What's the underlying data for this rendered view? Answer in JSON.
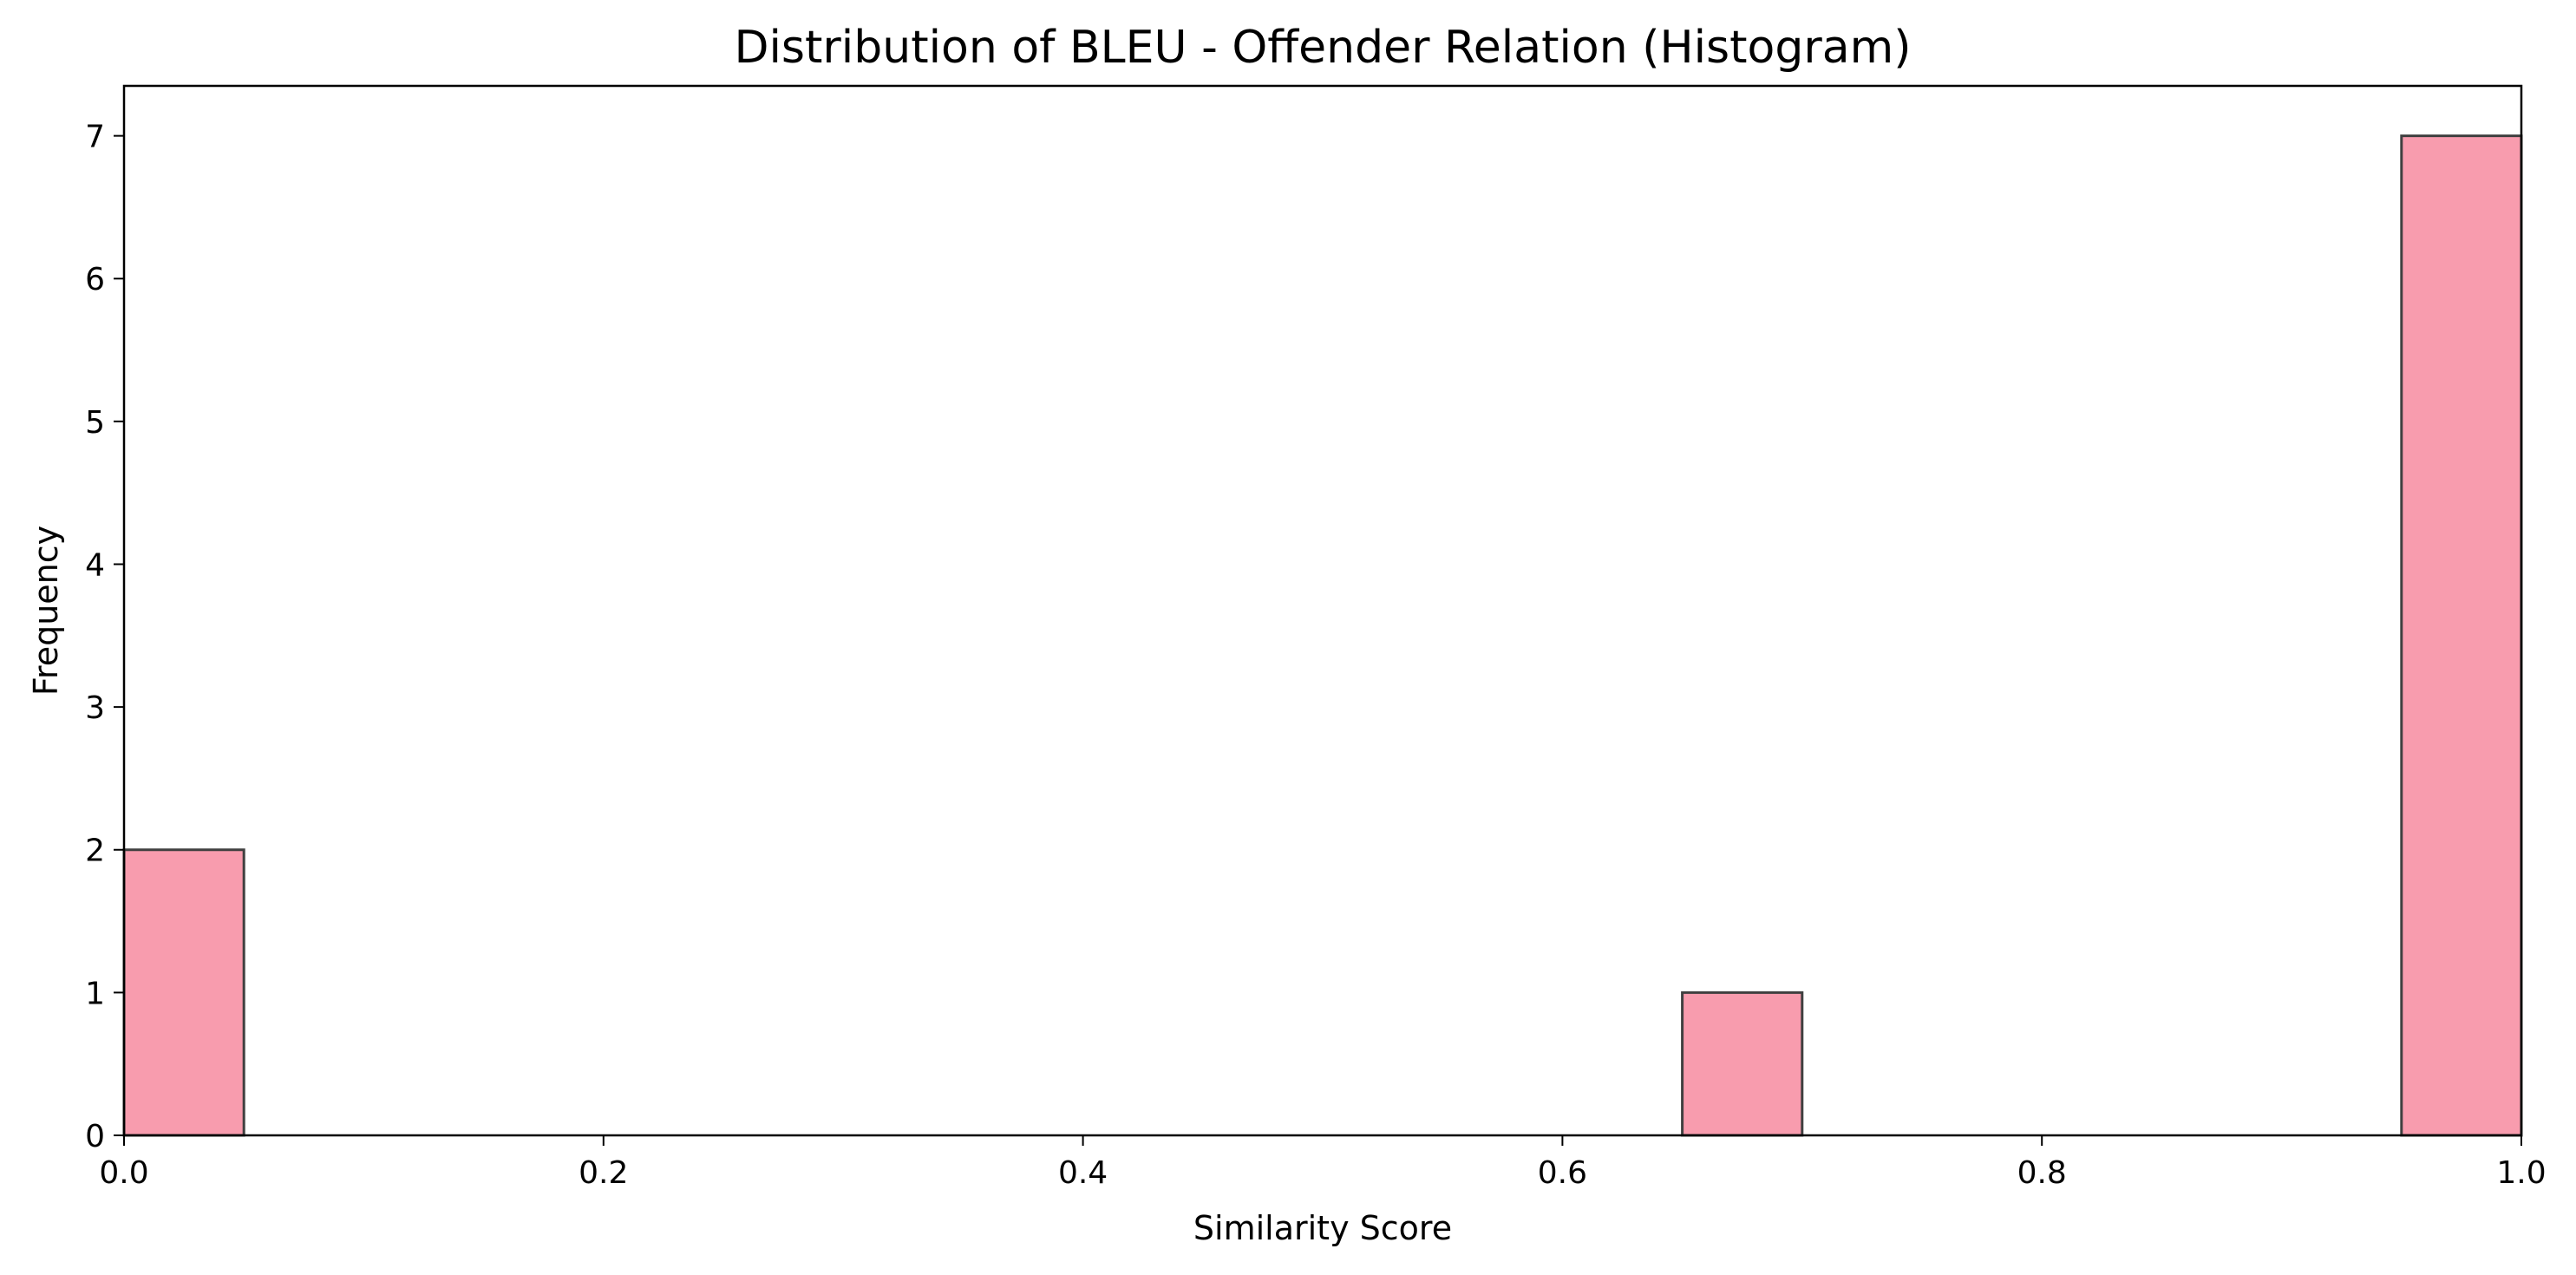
{
  "chart_data": {
    "type": "bar",
    "subtype": "histogram",
    "title": "Distribution of BLEU - Offender Relation (Histogram)",
    "xlabel": "Similarity Score",
    "ylabel": "Frequency",
    "xlim": [
      0.0,
      1.0
    ],
    "ylim": [
      0,
      7.35
    ],
    "xticks": [
      0.0,
      0.2,
      0.4,
      0.6,
      0.8,
      1.0
    ],
    "xtick_labels": [
      "0.0",
      "0.2",
      "0.4",
      "0.6",
      "0.8",
      "1.0"
    ],
    "yticks": [
      0,
      1,
      2,
      3,
      4,
      5,
      6,
      7
    ],
    "ytick_labels": [
      "0",
      "1",
      "2",
      "3",
      "4",
      "5",
      "6",
      "7"
    ],
    "bins": [
      {
        "x0": 0.0,
        "x1": 0.05,
        "count": 2
      },
      {
        "x0": 0.65,
        "x1": 0.7,
        "count": 1
      },
      {
        "x0": 0.95,
        "x1": 1.0,
        "count": 7
      }
    ],
    "bar_color": "#f89cae",
    "bar_edge_color": "#404040",
    "grid": false,
    "legend": "none"
  }
}
